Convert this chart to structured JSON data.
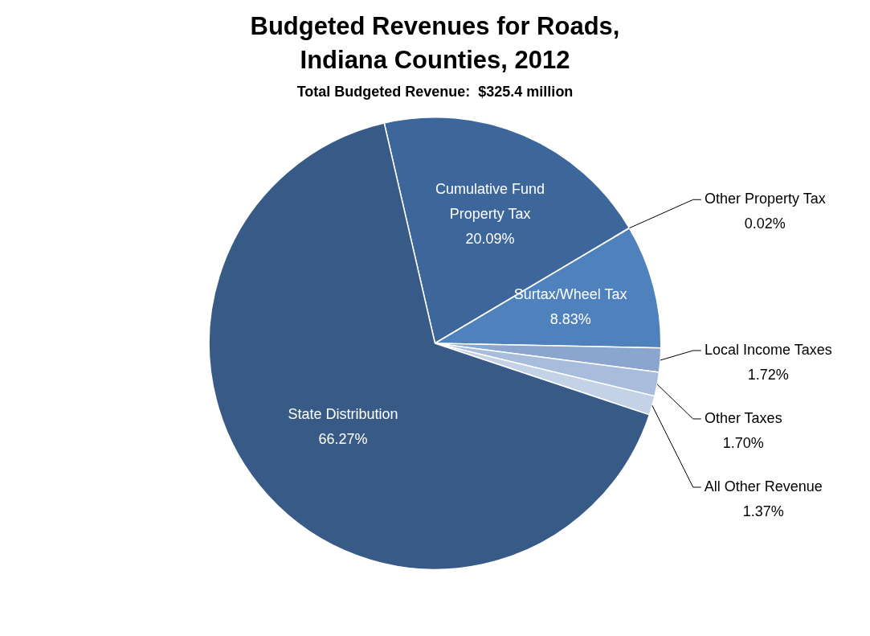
{
  "chart_data": {
    "type": "pie",
    "title": "Budgeted Revenues for Roads, Indiana Counties, 2012",
    "subtitle": "Total Budgeted Revenue:  $325.4 million",
    "categories": [
      "Cumulative Fund Property Tax",
      "Other Property Tax",
      "Surtax/Wheel Tax",
      "Local Income Taxes",
      "Other Taxes",
      "All Other Revenue",
      "State Distribution"
    ],
    "values": [
      20.09,
      0.02,
      8.83,
      1.72,
      1.7,
      1.37,
      66.27
    ],
    "colors": [
      "#3d679b",
      "#3d679b",
      "#4f81bd",
      "#8aa6cf",
      "#a8bcdc",
      "#c4d2e8",
      "#375a87"
    ],
    "value_labels": [
      "20.09%",
      "0.02%",
      "8.83%",
      "1.72%",
      "1.70%",
      "1.37%",
      "66.27%"
    ],
    "legend": false
  }
}
